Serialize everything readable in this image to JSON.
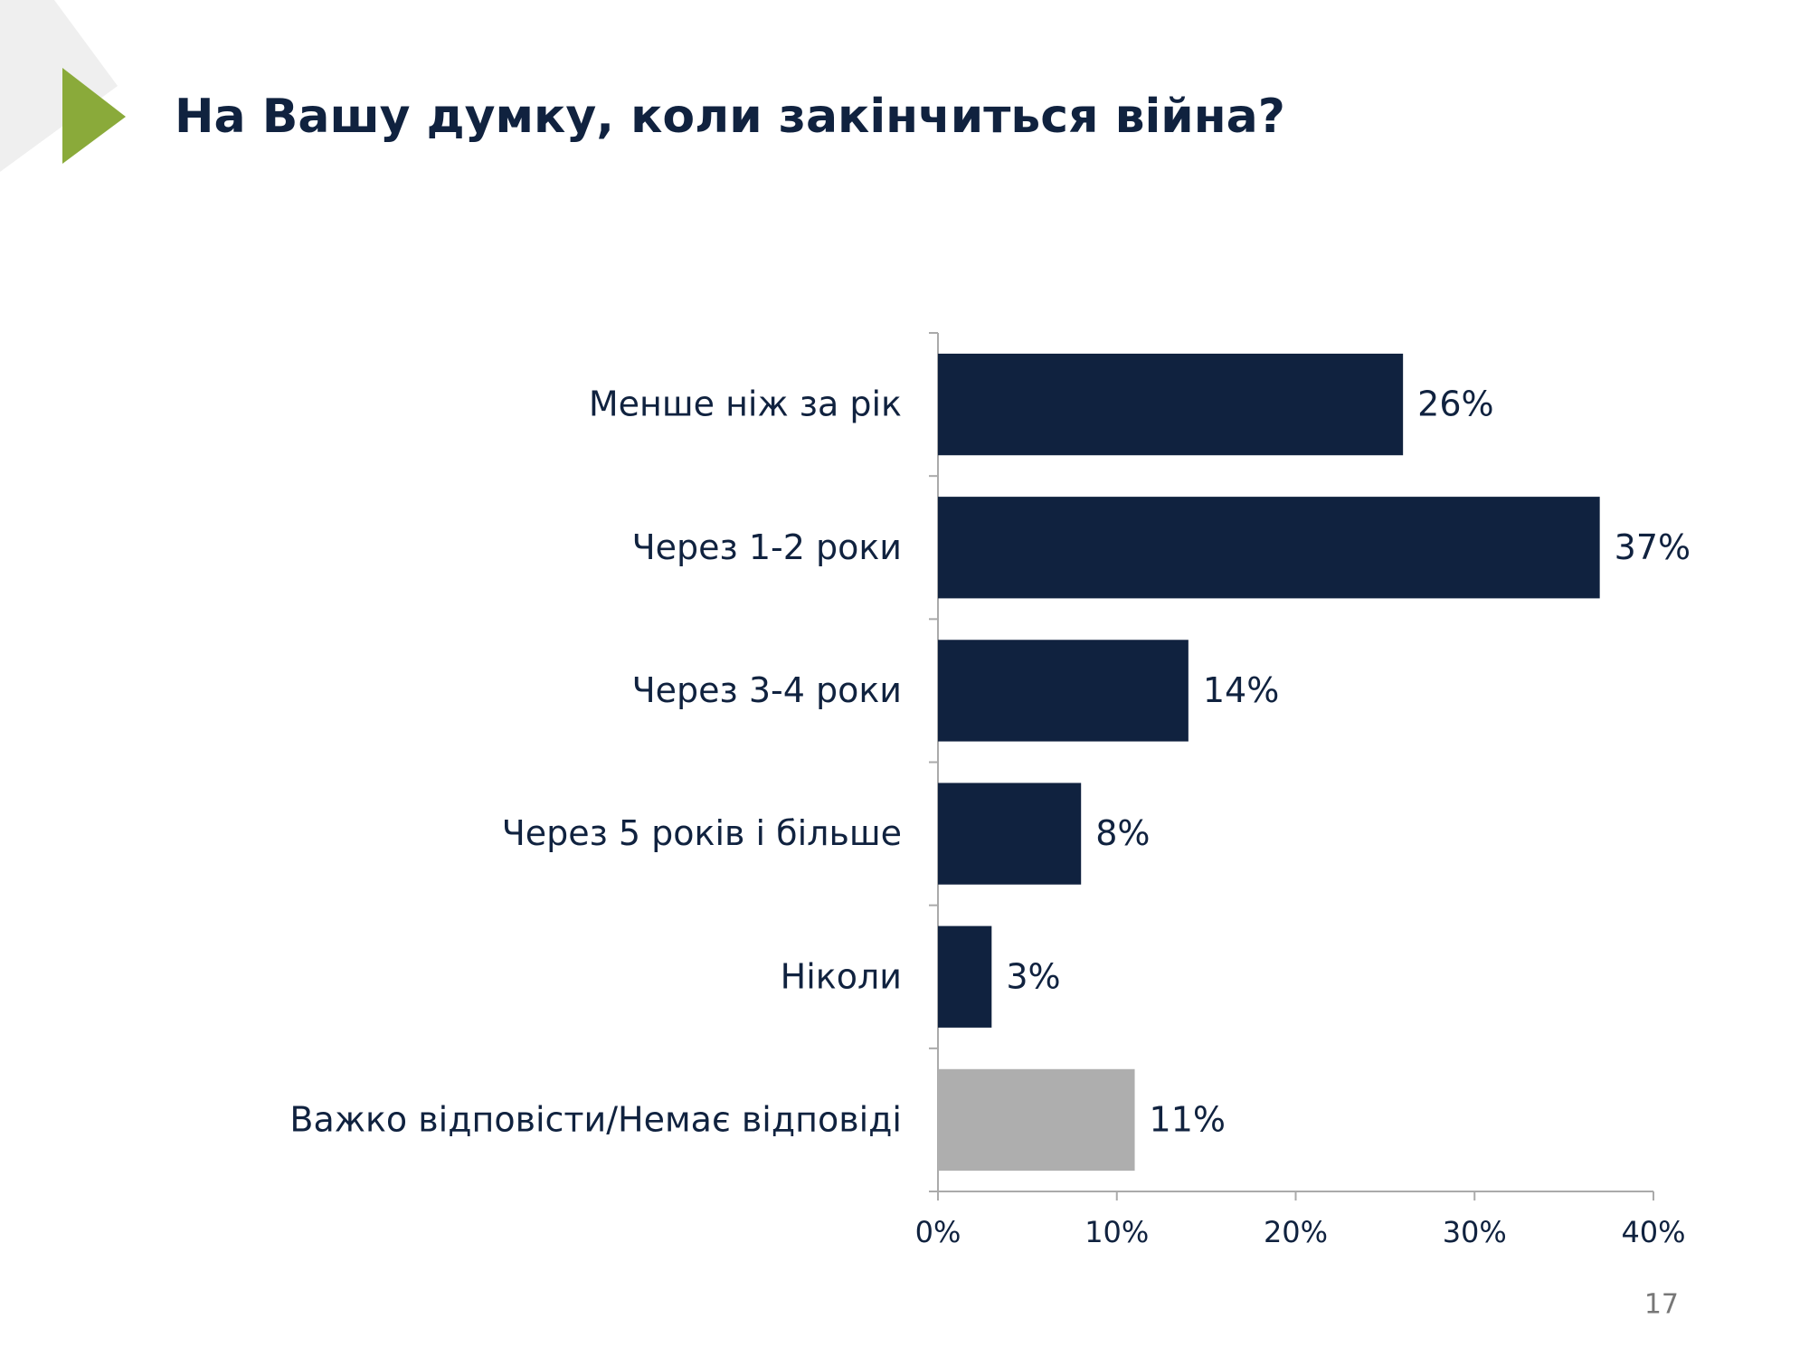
{
  "chart_data": {
    "type": "bar",
    "orientation": "horizontal",
    "title": "На Вашу думку, коли закінчиться війна?",
    "categories": [
      "Менше ніж за рік",
      "Через 1-2 роки",
      "Через 3-4 роки",
      "Через 5 років і більше",
      "Ніколи",
      "Важко відповісти/Немає відповіді"
    ],
    "values": [
      26,
      37,
      14,
      8,
      3,
      11
    ],
    "value_labels": [
      "26%",
      "37%",
      "14%",
      "8%",
      "3%",
      "11%"
    ],
    "colors": [
      "#10223f",
      "#10223f",
      "#10223f",
      "#10223f",
      "#10223f",
      "#aeaeae"
    ],
    "xlim": [
      0,
      40
    ],
    "xticks": [
      {
        "value": 0,
        "label": "0%"
      },
      {
        "value": 10,
        "label": "10%"
      },
      {
        "value": 20,
        "label": "20%"
      },
      {
        "value": 30,
        "label": "30%"
      },
      {
        "value": 40,
        "label": "40%"
      }
    ],
    "grid": false
  },
  "page_number": "17"
}
